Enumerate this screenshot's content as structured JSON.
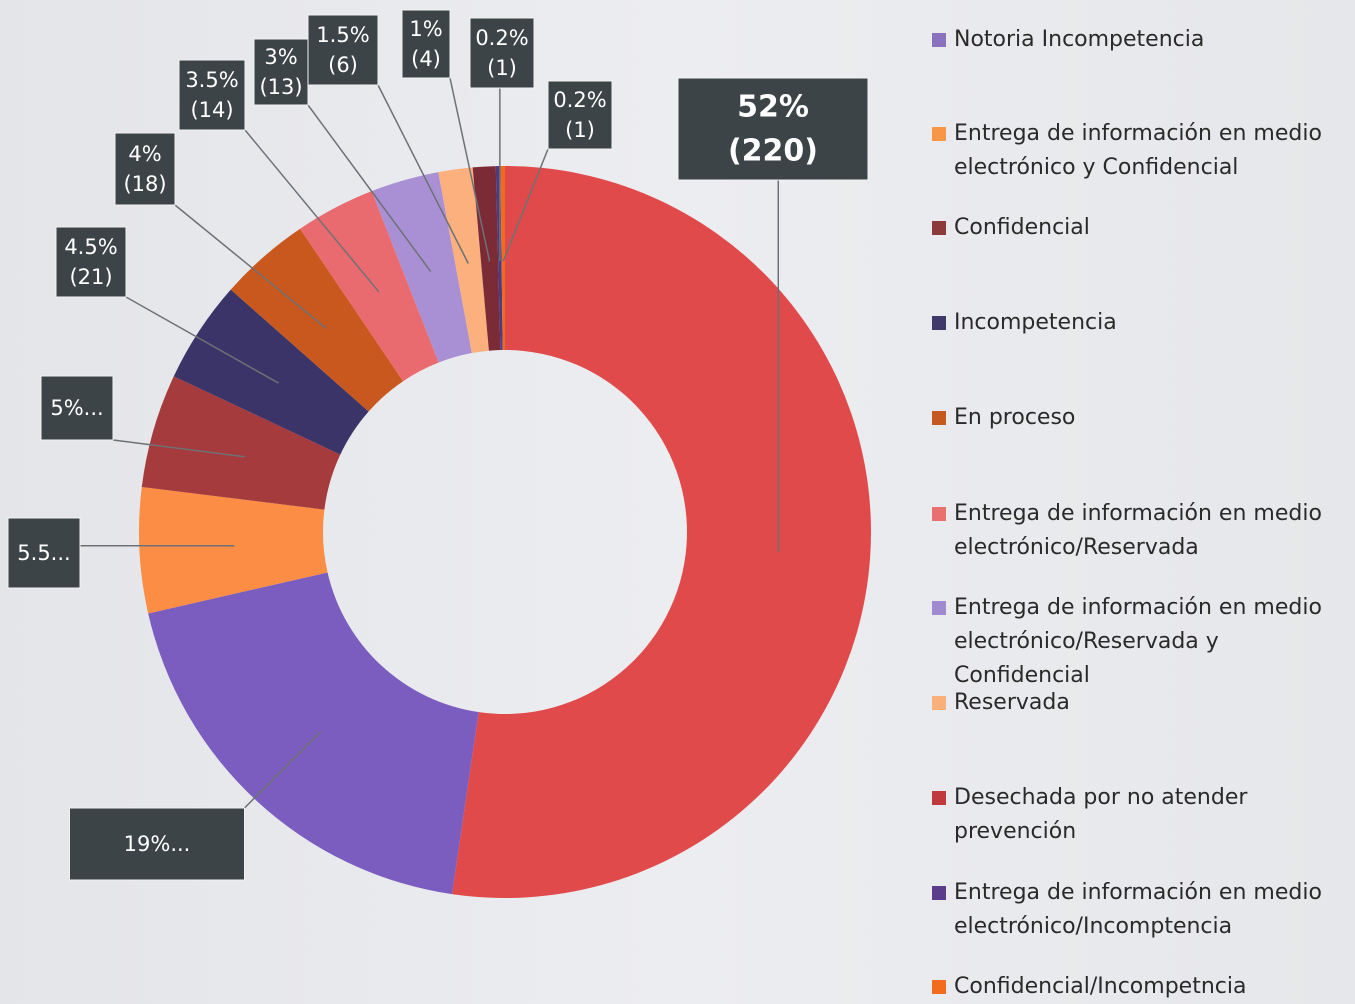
{
  "chart_data": {
    "type": "donut",
    "values": [
      52,
      19,
      5.5,
      5,
      4.5,
      4,
      3.5,
      3,
      1.5,
      1,
      0.2,
      0.2
    ],
    "value_labels": [
      [
        "52%",
        "(220)"
      ],
      [
        "19%..."
      ],
      [
        "5.5..."
      ],
      [
        "5%..."
      ],
      [
        "4.5%",
        "(21)"
      ],
      [
        "4%",
        "(18)"
      ],
      [
        "3.5%",
        "(14)"
      ],
      [
        "3%",
        "(13)"
      ],
      [
        "1.5%",
        "(6)"
      ],
      [
        "1%",
        "(4)"
      ],
      [
        "0.2%",
        "(1)"
      ],
      [
        "0.2%",
        "(1)"
      ]
    ],
    "colors": [
      "#e04a4a",
      "#7b5cbf",
      "#fb8d44",
      "#a63b3d",
      "#3b3469",
      "#c9581e",
      "#ea6b6f",
      "#a98fd4",
      "#fbb07e",
      "#7a2b35",
      "#4a3a88",
      "#f26a1c"
    ],
    "legend": [
      {
        "name": "Notoria Incompetencia",
        "color": "#8a72be"
      },
      {
        "name": "Entrega de información en medio electrónico y Confidencial",
        "color": "#f79646"
      },
      {
        "name": "Confidencial",
        "color": "#8c3a3a"
      },
      {
        "name": "Incompetencia",
        "color": "#403a6a"
      },
      {
        "name": "En proceso",
        "color": "#c55a20"
      },
      {
        "name": "Entrega de información en medio electrónico/Reservada",
        "color": "#e8706f"
      },
      {
        "name": "Entrega de información en medio electrónico/Reservada y Confidencial",
        "color": "#a08ad0"
      },
      {
        "name": "Reservada",
        "color": "#fab07a"
      },
      {
        "name": "Desechada por no atender prevención",
        "color": "#c0393c"
      },
      {
        "name": "Entrega de información en medio electrónico/Incomptencia",
        "color": "#5a3c8a"
      },
      {
        "name": "Confidencial/Incompetncia",
        "color": "#f26c1e"
      }
    ]
  }
}
